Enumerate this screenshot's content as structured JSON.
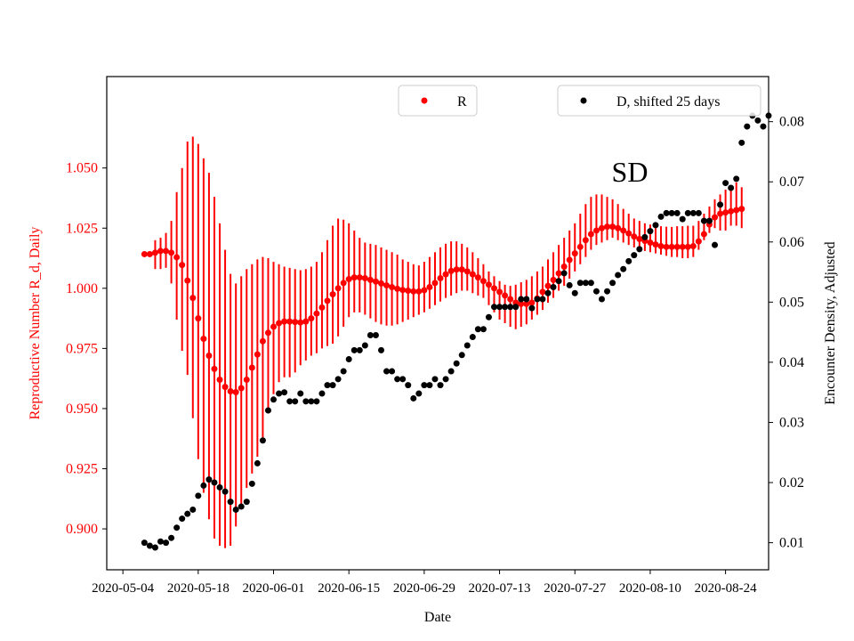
{
  "chart_data": {
    "type": "scatter",
    "annotation": "SD",
    "xlabel": "Date",
    "x_ticks": [
      "2020-05-04",
      "2020-05-18",
      "2020-06-01",
      "2020-06-15",
      "2020-06-29",
      "2020-07-13",
      "2020-07-27",
      "2020-08-10",
      "2020-08-24"
    ],
    "x_range_days": [
      -3,
      120
    ],
    "left_axis": {
      "label": "Reproductive Number R_d, Daily",
      "color": "#ff0000",
      "range": [
        0.883,
        1.088
      ],
      "ticks": [
        "0.900",
        "0.925",
        "0.950",
        "0.975",
        "1.000",
        "1.025",
        "1.050"
      ]
    },
    "right_axis": {
      "label": "Encounter Density, Adjusted",
      "color": "#000000",
      "range": [
        0.0055,
        0.0875
      ],
      "ticks": [
        "0.01",
        "0.02",
        "0.03",
        "0.04",
        "0.05",
        "0.06",
        "0.07",
        "0.08"
      ]
    },
    "legends": [
      {
        "label": "R",
        "color": "#ff0000",
        "position": "upper-center"
      },
      {
        "label": "D, shifted 25 days",
        "color": "#000000",
        "position": "upper-right"
      }
    ],
    "r_series": {
      "name": "R",
      "color": "#ff0000",
      "start_day": 4,
      "r": [
        1.0142,
        1.0142,
        1.0148,
        1.0155,
        1.0155,
        1.0148,
        1.0129,
        1.0097,
        1.0032,
        0.996,
        0.9875,
        0.979,
        0.972,
        0.9665,
        0.962,
        0.959,
        0.9572,
        0.9568,
        0.9585,
        0.962,
        0.967,
        0.9725,
        0.978,
        0.9815,
        0.984,
        0.9855,
        0.9862,
        0.9862,
        0.986,
        0.9858,
        0.9862,
        0.9875,
        0.9895,
        0.992,
        0.9948,
        0.9975,
        1.0,
        1.0022,
        1.0038,
        1.0045,
        1.0045,
        1.0042,
        1.0035,
        1.0028,
        1.002,
        1.0012,
        1.0005,
        0.9998,
        0.9993,
        0.999,
        0.9987,
        0.9987,
        0.9992,
        1.0005,
        1.0022,
        1.0042,
        1.0058,
        1.0072,
        1.0078,
        1.0078,
        1.007,
        1.0058,
        1.0045,
        1.003,
        1.0015,
        1.0,
        0.9985,
        0.997,
        0.9955,
        0.994,
        0.9935,
        0.9935,
        0.994,
        0.9958,
        0.9985,
        1.001,
        1.0035,
        1.0062,
        1.009,
        1.0118,
        1.0145,
        1.0172,
        1.02,
        1.0225,
        1.024,
        1.025,
        1.0256,
        1.0256,
        1.025,
        1.024,
        1.0228,
        1.0215,
        1.0205,
        1.0197,
        1.019,
        1.0182,
        1.0175,
        1.0172,
        1.0172,
        1.0172,
        1.0172,
        1.0172,
        1.0175,
        1.0195,
        1.0225,
        1.0265,
        1.0295,
        1.031,
        1.0315,
        1.032,
        1.0325,
        1.033
      ],
      "lo": [
        1.0142,
        1.0142,
        1.008,
        1.008,
        1.0085,
        1.002,
        0.987,
        0.974,
        0.964,
        0.946,
        0.929,
        0.915,
        0.904,
        0.896,
        0.893,
        0.892,
        0.893,
        0.901,
        0.91,
        0.917,
        0.923,
        0.93,
        0.938,
        0.948,
        0.956,
        0.961,
        0.963,
        0.963,
        0.965,
        0.968,
        0.97,
        0.972,
        0.973,
        0.975,
        0.976,
        0.977,
        0.98,
        0.984,
        0.988,
        0.99,
        0.99,
        0.989,
        0.9875,
        0.986,
        0.985,
        0.9845,
        0.9845,
        0.985,
        0.986,
        0.987,
        0.988,
        0.989,
        0.99,
        0.9915,
        0.993,
        0.9945,
        0.996,
        0.997,
        0.998,
        0.999,
        0.999,
        0.998,
        0.997,
        0.996,
        0.993,
        0.99,
        0.987,
        0.9855,
        0.984,
        0.983,
        0.984,
        0.985,
        0.987,
        0.989,
        0.991,
        0.994,
        0.996,
        0.999,
        1.001,
        1.004,
        1.007,
        1.01,
        1.013,
        1.016,
        1.018,
        1.019,
        1.02,
        1.021,
        1.02,
        1.019,
        1.018,
        1.017,
        1.016,
        1.0155,
        1.015,
        1.0145,
        1.014,
        1.0135,
        1.013,
        1.013,
        1.0125,
        1.0125,
        1.013,
        1.016,
        1.02,
        1.023,
        1.025,
        1.024,
        1.024,
        1.026,
        1.026,
        1.025
      ],
      "hi": [
        1.0142,
        1.0142,
        1.02,
        1.021,
        1.023,
        1.028,
        1.04,
        1.05,
        1.061,
        1.063,
        1.06,
        1.054,
        1.048,
        1.038,
        1.027,
        1.016,
        1.006,
        1.002,
        1.005,
        1.008,
        1.01,
        1.012,
        1.013,
        1.0125,
        1.011,
        1.01,
        1.009,
        1.0085,
        1.008,
        1.0075,
        1.008,
        1.009,
        1.011,
        1.015,
        1.02,
        1.026,
        1.029,
        1.0285,
        1.027,
        1.024,
        1.021,
        1.019,
        1.0185,
        1.018,
        1.017,
        1.016,
        1.015,
        1.014,
        1.012,
        1.011,
        1.01,
        1.0095,
        1.011,
        1.013,
        1.015,
        1.017,
        1.0185,
        1.0195,
        1.0195,
        1.0185,
        1.017,
        1.015,
        1.0125,
        1.01,
        1.007,
        1.005,
        1.003,
        1.0015,
        1.001,
        1.0015,
        1.0025,
        1.0035,
        1.005,
        1.007,
        1.009,
        1.012,
        1.015,
        1.018,
        1.021,
        1.024,
        1.027,
        1.031,
        1.035,
        1.038,
        1.039,
        1.039,
        1.038,
        1.037,
        1.035,
        1.033,
        1.031,
        1.029,
        1.028,
        1.027,
        1.0265,
        1.026,
        1.0258,
        1.0256,
        1.0255,
        1.0258,
        1.0258,
        1.026,
        1.026,
        1.028,
        1.031,
        1.034,
        1.037,
        1.039,
        1.041,
        1.042,
        1.044,
        1.042
      ]
    },
    "d_series": {
      "name": "D, shifted 25 days",
      "color": "#000000",
      "points": [
        [
          4,
          0.01
        ],
        [
          5,
          0.0095
        ],
        [
          6,
          0.0092
        ],
        [
          7,
          0.0102
        ],
        [
          8,
          0.01
        ],
        [
          9,
          0.0108
        ],
        [
          10,
          0.0125
        ],
        [
          11,
          0.014
        ],
        [
          12,
          0.0148
        ],
        [
          13,
          0.0155
        ],
        [
          14,
          0.0178
        ],
        [
          15,
          0.0195
        ],
        [
          16,
          0.0205
        ],
        [
          17,
          0.02
        ],
        [
          18,
          0.0192
        ],
        [
          19,
          0.0185
        ],
        [
          20,
          0.0168
        ],
        [
          21,
          0.0155
        ],
        [
          22,
          0.016
        ],
        [
          23,
          0.0168
        ],
        [
          24,
          0.0198
        ],
        [
          25,
          0.0232
        ],
        [
          26,
          0.027
        ],
        [
          27,
          0.032
        ],
        [
          28,
          0.0338
        ],
        [
          29,
          0.0348
        ],
        [
          30,
          0.035
        ],
        [
          31,
          0.0335
        ],
        [
          32,
          0.0335
        ],
        [
          33,
          0.0348
        ],
        [
          34,
          0.0335
        ],
        [
          35,
          0.0335
        ],
        [
          36,
          0.0335
        ],
        [
          37,
          0.0348
        ],
        [
          38,
          0.0362
        ],
        [
          39,
          0.0362
        ],
        [
          40,
          0.0372
        ],
        [
          41,
          0.0385
        ],
        [
          42,
          0.0405
        ],
        [
          43,
          0.042
        ],
        [
          44,
          0.042
        ],
        [
          45,
          0.0428
        ],
        [
          46,
          0.0445
        ],
        [
          47,
          0.0445
        ],
        [
          48,
          0.042
        ],
        [
          49,
          0.0385
        ],
        [
          50,
          0.0385
        ],
        [
          51,
          0.0372
        ],
        [
          52,
          0.0372
        ],
        [
          53,
          0.0362
        ],
        [
          54,
          0.034
        ],
        [
          55,
          0.0348
        ],
        [
          56,
          0.0362
        ],
        [
          57,
          0.0362
        ],
        [
          58,
          0.0372
        ],
        [
          59,
          0.0362
        ],
        [
          60,
          0.0372
        ],
        [
          61,
          0.0385
        ],
        [
          62,
          0.0398
        ],
        [
          63,
          0.0412
        ],
        [
          64,
          0.0428
        ],
        [
          65,
          0.0442
        ],
        [
          66,
          0.0455
        ],
        [
          67,
          0.0455
        ],
        [
          68,
          0.0475
        ],
        [
          69,
          0.0492
        ],
        [
          70,
          0.0492
        ],
        [
          71,
          0.0492
        ],
        [
          72,
          0.0492
        ],
        [
          73,
          0.0492
        ],
        [
          74,
          0.0505
        ],
        [
          75,
          0.0505
        ],
        [
          76,
          0.049
        ],
        [
          77,
          0.0505
        ],
        [
          78,
          0.0505
        ],
        [
          79,
          0.0515
        ],
        [
          80,
          0.0525
        ],
        [
          81,
          0.0535
        ],
        [
          82,
          0.0548
        ],
        [
          83,
          0.0528
        ],
        [
          84,
          0.0515
        ],
        [
          85,
          0.0532
        ],
        [
          86,
          0.0532
        ],
        [
          87,
          0.0532
        ],
        [
          88,
          0.0518
        ],
        [
          89,
          0.0505
        ],
        [
          90,
          0.0518
        ],
        [
          91,
          0.0532
        ],
        [
          92,
          0.0545
        ],
        [
          93,
          0.0555
        ],
        [
          94,
          0.0568
        ],
        [
          95,
          0.0578
        ],
        [
          96,
          0.0588
        ],
        [
          97,
          0.0608
        ],
        [
          98,
          0.0618
        ],
        [
          99,
          0.0628
        ],
        [
          100,
          0.0642
        ],
        [
          101,
          0.0648
        ],
        [
          102,
          0.0648
        ],
        [
          103,
          0.0648
        ],
        [
          104,
          0.0638
        ],
        [
          105,
          0.0648
        ],
        [
          106,
          0.0648
        ],
        [
          107,
          0.0648
        ],
        [
          108,
          0.0635
        ],
        [
          109,
          0.0635
        ],
        [
          110,
          0.0595
        ],
        [
          111,
          0.0662
        ],
        [
          112,
          0.0698
        ],
        [
          113,
          0.069
        ],
        [
          114,
          0.0705
        ],
        [
          115,
          0.0765
        ],
        [
          116,
          0.0792
        ],
        [
          117,
          0.081
        ],
        [
          118,
          0.0802
        ],
        [
          119,
          0.0792
        ],
        [
          120,
          0.081
        ]
      ]
    }
  }
}
